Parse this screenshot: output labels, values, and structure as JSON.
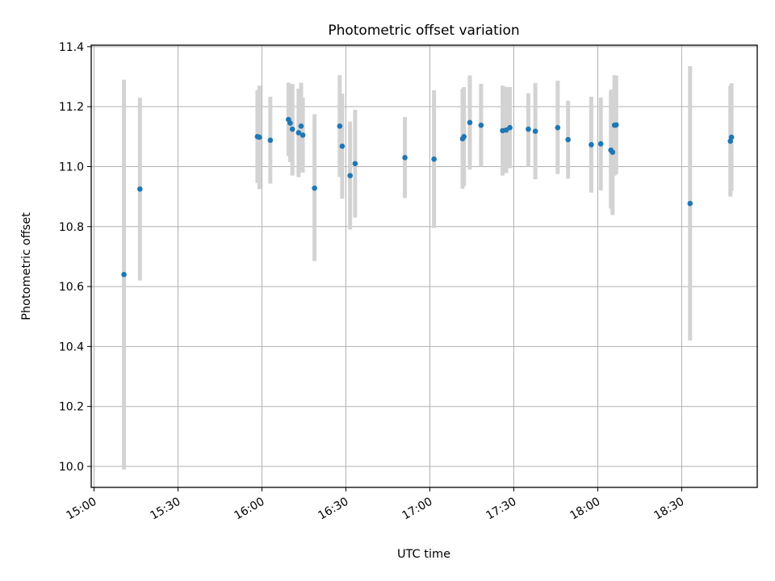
{
  "chart_data": {
    "type": "scatter",
    "title": "Photometric offset variation",
    "xlabel": "UTC time",
    "ylabel": "Photometric offset",
    "grid": true,
    "ylim": [
      9.93,
      11.405
    ],
    "xlim_minutes": [
      899,
      1137
    ],
    "x_ticks": [
      {
        "minutes": 900,
        "label": "15:00"
      },
      {
        "minutes": 930,
        "label": "15:30"
      },
      {
        "minutes": 960,
        "label": "16:00"
      },
      {
        "minutes": 990,
        "label": "16:30"
      },
      {
        "minutes": 1020,
        "label": "17:00"
      },
      {
        "minutes": 1050,
        "label": "17:30"
      },
      {
        "minutes": 1080,
        "label": "18:00"
      },
      {
        "minutes": 1110,
        "label": "18:30"
      }
    ],
    "y_ticks": [
      {
        "value": 10.0,
        "label": "10.0"
      },
      {
        "value": 10.2,
        "label": "10.2"
      },
      {
        "value": 10.4,
        "label": "10.4"
      },
      {
        "value": 10.6,
        "label": "10.6"
      },
      {
        "value": 10.8,
        "label": "10.8"
      },
      {
        "value": 11.0,
        "label": "11.0"
      },
      {
        "value": 11.2,
        "label": "11.2"
      },
      {
        "value": 11.4,
        "label": "11.4"
      }
    ],
    "marker_color": "#1f77b4",
    "errorbar_color": "#d3d3d3",
    "series": [
      {
        "name": "offset",
        "points": [
          {
            "minutes": 910.7,
            "y": 10.64,
            "low": 9.99,
            "high": 11.29
          },
          {
            "minutes": 916.4,
            "y": 10.925,
            "low": 10.62,
            "high": 11.23
          },
          {
            "minutes": 958.4,
            "y": 11.1,
            "low": 10.945,
            "high": 11.255
          },
          {
            "minutes": 959.1,
            "y": 11.098,
            "low": 10.925,
            "high": 11.27
          },
          {
            "minutes": 963.0,
            "y": 11.088,
            "low": 10.943,
            "high": 11.233
          },
          {
            "minutes": 969.5,
            "y": 11.157,
            "low": 11.035,
            "high": 11.28
          },
          {
            "minutes": 970.1,
            "y": 11.145,
            "low": 11.015,
            "high": 11.275
          },
          {
            "minutes": 970.9,
            "y": 11.125,
            "low": 10.97,
            "high": 11.275
          },
          {
            "minutes": 973.1,
            "y": 11.113,
            "low": 10.965,
            "high": 11.26
          },
          {
            "minutes": 974.0,
            "y": 11.135,
            "low": 10.99,
            "high": 11.28
          },
          {
            "minutes": 974.6,
            "y": 11.105,
            "low": 10.98,
            "high": 11.23
          },
          {
            "minutes": 978.8,
            "y": 10.928,
            "low": 10.685,
            "high": 11.175
          },
          {
            "minutes": 987.8,
            "y": 11.135,
            "low": 10.965,
            "high": 11.305
          },
          {
            "minutes": 988.7,
            "y": 11.068,
            "low": 10.893,
            "high": 11.243
          },
          {
            "minutes": 991.5,
            "y": 10.97,
            "low": 10.79,
            "high": 11.15
          },
          {
            "minutes": 993.3,
            "y": 11.01,
            "low": 10.83,
            "high": 11.19
          },
          {
            "minutes": 1011.1,
            "y": 11.03,
            "low": 10.895,
            "high": 11.165
          },
          {
            "minutes": 1021.5,
            "y": 11.025,
            "low": 10.795,
            "high": 11.255
          },
          {
            "minutes": 1031.7,
            "y": 11.093,
            "low": 10.926,
            "high": 11.26
          },
          {
            "minutes": 1032.2,
            "y": 11.1,
            "low": 10.935,
            "high": 11.265
          },
          {
            "minutes": 1034.3,
            "y": 11.147,
            "low": 10.99,
            "high": 11.304
          },
          {
            "minutes": 1038.3,
            "y": 11.138,
            "low": 11.0,
            "high": 11.276
          },
          {
            "minutes": 1046.0,
            "y": 11.12,
            "low": 10.97,
            "high": 11.27
          },
          {
            "minutes": 1047.3,
            "y": 11.122,
            "low": 10.978,
            "high": 11.266
          },
          {
            "minutes": 1048.6,
            "y": 11.13,
            "low": 10.995,
            "high": 11.265
          },
          {
            "minutes": 1055.2,
            "y": 11.125,
            "low": 11.0,
            "high": 11.245
          },
          {
            "minutes": 1057.7,
            "y": 11.118,
            "low": 10.958,
            "high": 11.279
          },
          {
            "minutes": 1065.7,
            "y": 11.13,
            "low": 10.975,
            "high": 11.287
          },
          {
            "minutes": 1069.4,
            "y": 11.09,
            "low": 10.96,
            "high": 11.22
          },
          {
            "minutes": 1077.7,
            "y": 11.073,
            "low": 10.913,
            "high": 11.233
          },
          {
            "minutes": 1081.1,
            "y": 11.076,
            "low": 10.921,
            "high": 11.23
          },
          {
            "minutes": 1084.7,
            "y": 11.055,
            "low": 10.86,
            "high": 11.255
          },
          {
            "minutes": 1085.3,
            "y": 11.048,
            "low": 10.838,
            "high": 11.258
          },
          {
            "minutes": 1086.0,
            "y": 11.138,
            "low": 10.97,
            "high": 11.305
          },
          {
            "minutes": 1086.6,
            "y": 11.139,
            "low": 10.975,
            "high": 11.303
          },
          {
            "minutes": 1113.0,
            "y": 10.877,
            "low": 10.42,
            "high": 11.335
          },
          {
            "minutes": 1127.4,
            "y": 11.085,
            "low": 10.9,
            "high": 11.27
          },
          {
            "minutes": 1127.8,
            "y": 11.098,
            "low": 10.918,
            "high": 11.278
          }
        ]
      }
    ]
  }
}
